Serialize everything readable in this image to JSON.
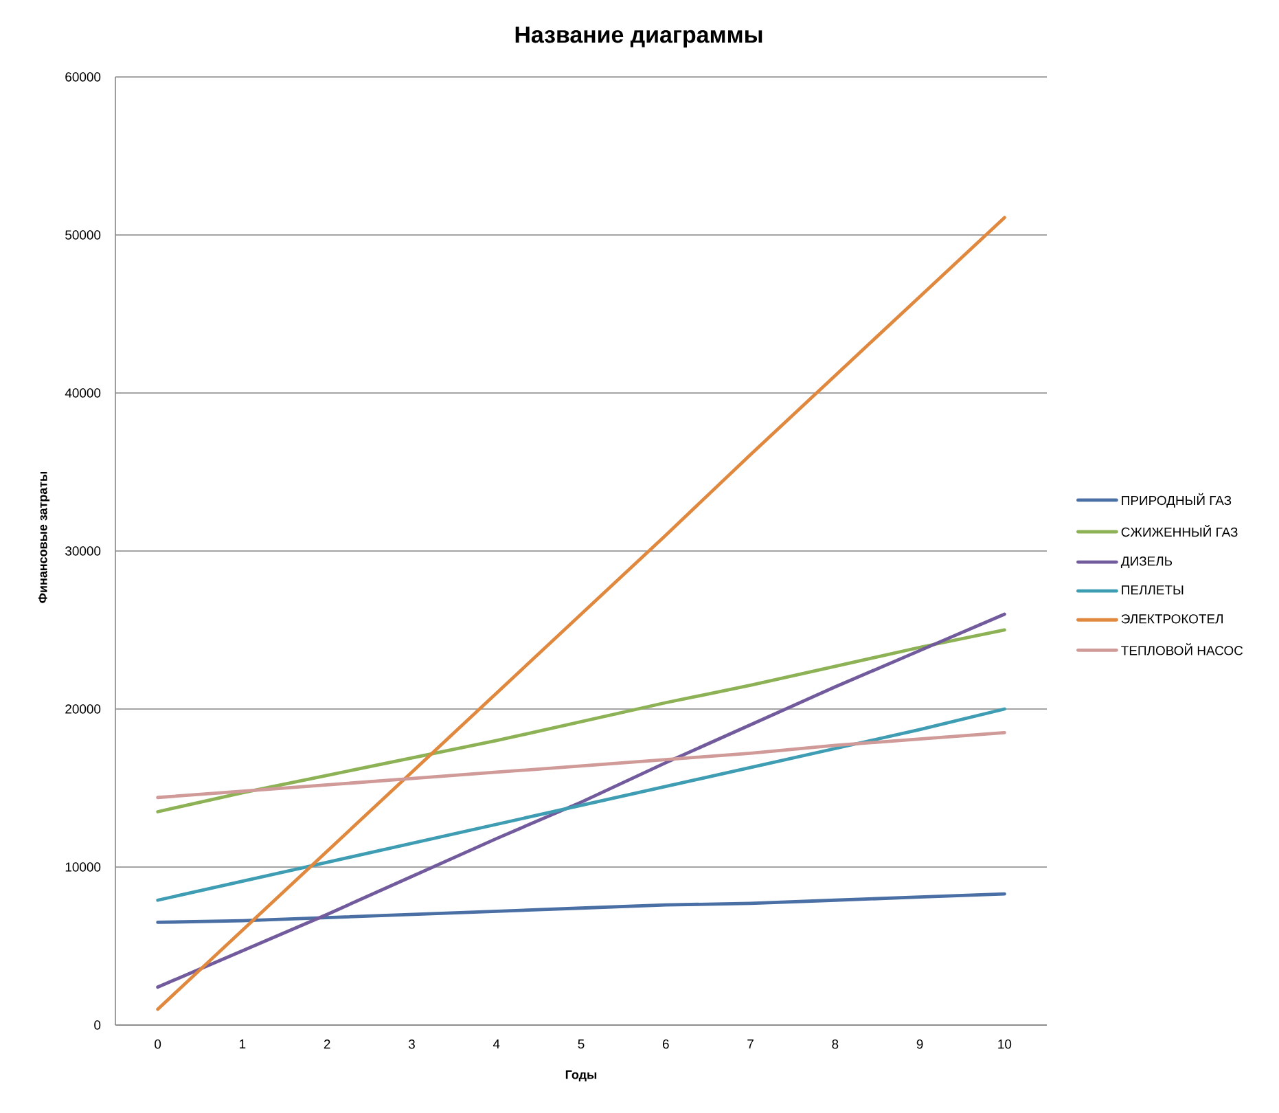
{
  "chart_data": {
    "type": "line",
    "title": "Название диаграммы",
    "xlabel": "Годы",
    "ylabel": "Финансовые затраты",
    "categories": [
      "0",
      "1",
      "2",
      "3",
      "4",
      "5",
      "6",
      "7",
      "8",
      "9",
      "10"
    ],
    "ylim": [
      0,
      60000
    ],
    "yticks": [
      0,
      10000,
      20000,
      30000,
      40000,
      50000,
      60000
    ],
    "grid": "y",
    "legend": "right",
    "line_style": "solid",
    "series": [
      {
        "name": "ПРИРОДНЫЙ ГАЗ",
        "color": "#4a6fa5",
        "values": [
          6500,
          6600,
          6800,
          7000,
          7200,
          7400,
          7600,
          7700,
          7900,
          8100,
          8300
        ]
      },
      {
        "name": "СЖИЖЕННЫЙ ГАЗ",
        "color": "#8db255",
        "values": [
          13500,
          14700,
          15800,
          16900,
          18000,
          19200,
          20400,
          21500,
          22700,
          23900,
          25000
        ]
      },
      {
        "name": "ДИЗЕЛЬ",
        "color": "#725b9c",
        "values": [
          2400,
          4700,
          7000,
          9400,
          11800,
          14100,
          16600,
          19000,
          21400,
          23700,
          26000
        ]
      },
      {
        "name": "ПЕЛЛЕТЫ",
        "color": "#3f9db3",
        "values": [
          7900,
          9100,
          10300,
          11500,
          12700,
          13900,
          15100,
          16300,
          17500,
          18700,
          20000
        ]
      },
      {
        "name": "ЭЛЕКТРОКОТЕЛ",
        "color": "#e0883e",
        "values": [
          1000,
          6000,
          11000,
          16000,
          21000,
          26000,
          31000,
          36100,
          41100,
          46100,
          51100
        ]
      },
      {
        "name": "ТЕПЛОВОЙ НАСОС",
        "color": "#d09a99",
        "values": [
          14400,
          14800,
          15200,
          15600,
          16000,
          16400,
          16800,
          17200,
          17700,
          18100,
          18500
        ]
      }
    ]
  }
}
